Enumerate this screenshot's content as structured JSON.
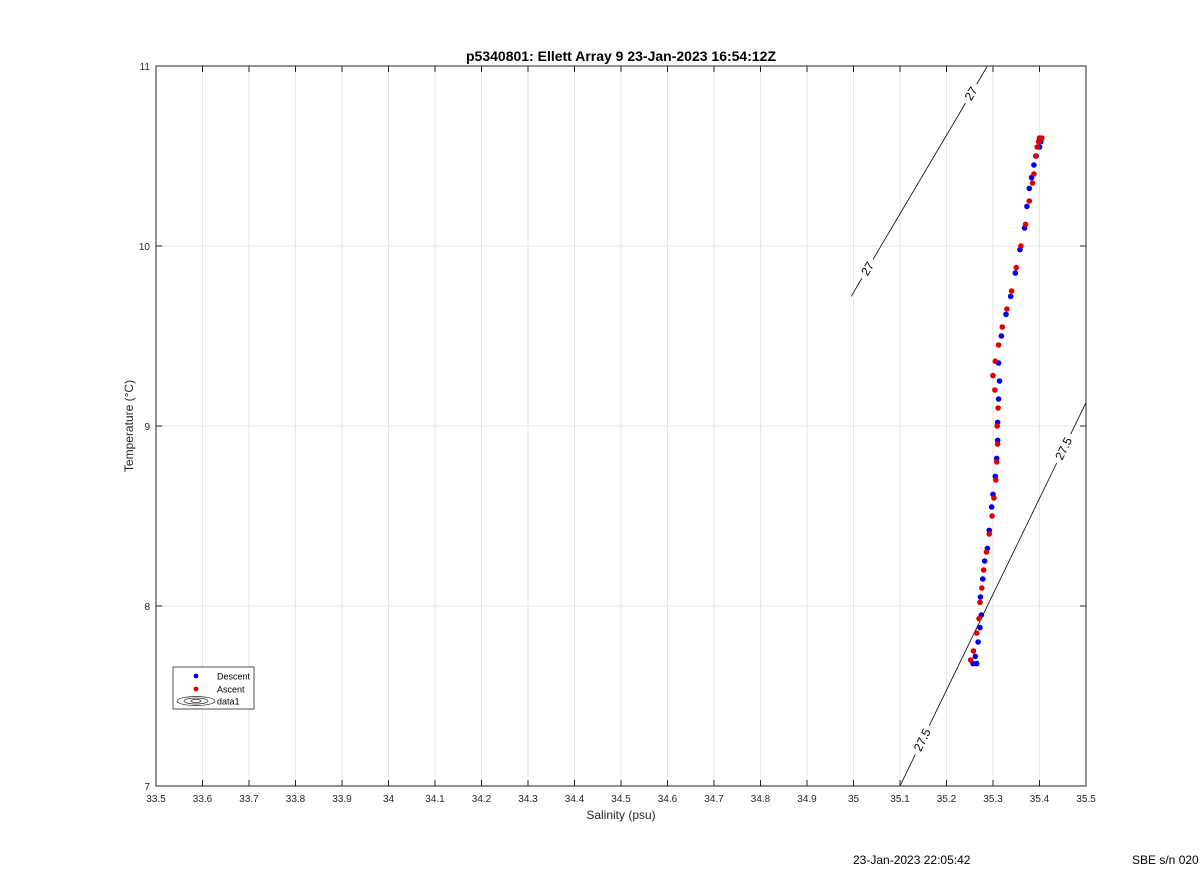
{
  "chart_data": {
    "type": "scatter",
    "title": "p5340801: Ellett Array 9 23-Jan-2023 16:54:12Z",
    "xlabel": "Salinity (psu)",
    "ylabel": "Temperature (°C)",
    "xlim": [
      33.5,
      35.5
    ],
    "ylim": [
      7,
      11
    ],
    "x_ticks": [
      "33.5",
      "33.6",
      "33.7",
      "33.8",
      "33.9",
      "34",
      "34.1",
      "34.2",
      "34.3",
      "34.4",
      "34.5",
      "34.6",
      "34.7",
      "34.8",
      "34.9",
      "35",
      "35.1",
      "35.2",
      "35.3",
      "35.4",
      "35.5"
    ],
    "y_ticks": [
      "7",
      "8",
      "9",
      "10",
      "11"
    ],
    "grid": true,
    "legend_position": "bottom-left",
    "legend": [
      "Descent",
      "Ascent",
      "data1"
    ],
    "colors": {
      "descent": "#0000ee",
      "ascent": "#dd0000",
      "grid": "#e6e6e6",
      "contour": "#000000"
    },
    "series": [
      {
        "name": "Descent",
        "points": [
          [
            35.257,
            7.68
          ],
          [
            35.265,
            7.68
          ],
          [
            35.262,
            7.72
          ],
          [
            35.268,
            7.8
          ],
          [
            35.272,
            7.88
          ],
          [
            35.275,
            7.95
          ],
          [
            35.273,
            8.05
          ],
          [
            35.278,
            8.15
          ],
          [
            35.282,
            8.25
          ],
          [
            35.288,
            8.32
          ],
          [
            35.292,
            8.42
          ],
          [
            35.297,
            8.55
          ],
          [
            35.3,
            8.62
          ],
          [
            35.305,
            8.72
          ],
          [
            35.308,
            8.82
          ],
          [
            35.31,
            8.92
          ],
          [
            35.31,
            9.02
          ],
          [
            35.312,
            9.15
          ],
          [
            35.314,
            9.25
          ],
          [
            35.312,
            9.35
          ],
          [
            35.318,
            9.5
          ],
          [
            35.328,
            9.62
          ],
          [
            35.338,
            9.72
          ],
          [
            35.348,
            9.85
          ],
          [
            35.358,
            9.98
          ],
          [
            35.368,
            10.1
          ],
          [
            35.373,
            10.22
          ],
          [
            35.378,
            10.32
          ],
          [
            35.383,
            10.38
          ],
          [
            35.388,
            10.45
          ],
          [
            35.393,
            10.5
          ],
          [
            35.4,
            10.55
          ],
          [
            35.403,
            10.58
          ]
        ]
      },
      {
        "name": "Ascent",
        "points": [
          [
            35.252,
            7.7
          ],
          [
            35.258,
            7.75
          ],
          [
            35.265,
            7.85
          ],
          [
            35.27,
            7.93
          ],
          [
            35.272,
            8.02
          ],
          [
            35.276,
            8.1
          ],
          [
            35.28,
            8.2
          ],
          [
            35.286,
            8.3
          ],
          [
            35.292,
            8.4
          ],
          [
            35.298,
            8.5
          ],
          [
            35.302,
            8.6
          ],
          [
            35.306,
            8.7
          ],
          [
            35.308,
            8.8
          ],
          [
            35.31,
            8.9
          ],
          [
            35.309,
            9.0
          ],
          [
            35.311,
            9.1
          ],
          [
            35.304,
            9.2
          ],
          [
            35.3,
            9.28
          ],
          [
            35.305,
            9.36
          ],
          [
            35.312,
            9.45
          ],
          [
            35.32,
            9.55
          ],
          [
            35.33,
            9.65
          ],
          [
            35.34,
            9.75
          ],
          [
            35.35,
            9.88
          ],
          [
            35.36,
            10.0
          ],
          [
            35.37,
            10.12
          ],
          [
            35.378,
            10.25
          ],
          [
            35.385,
            10.35
          ],
          [
            35.388,
            10.4
          ],
          [
            35.392,
            10.5
          ],
          [
            35.395,
            10.55
          ],
          [
            35.398,
            10.58
          ],
          [
            35.4,
            10.6
          ],
          [
            35.405,
            10.6
          ]
        ]
      }
    ],
    "isopycnals": [
      {
        "label": "27",
        "points": [
          [
            34.995,
            9.72
          ],
          [
            35.288,
            11.0
          ]
        ]
      },
      {
        "label": "27.5",
        "points": [
          [
            35.1,
            7.0
          ],
          [
            35.5,
            9.13
          ]
        ]
      }
    ]
  },
  "footer": {
    "timestamp": "23-Jan-2023 22:05:42",
    "serial": "SBE s/n 020"
  }
}
